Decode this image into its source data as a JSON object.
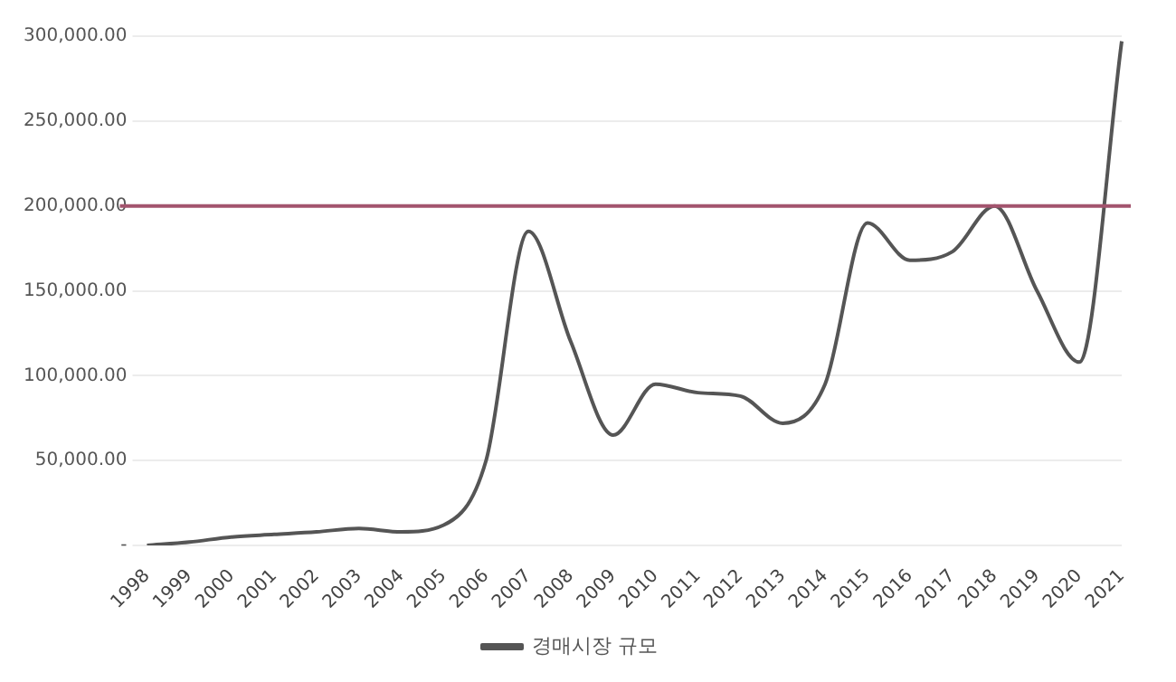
{
  "chart_data": {
    "type": "line",
    "categories": [
      "1998",
      "1999",
      "2000",
      "2001",
      "2002",
      "2003",
      "2004",
      "2005",
      "2006",
      "2007",
      "2008",
      "2009",
      "2010",
      "2011",
      "2012",
      "2013",
      "2014",
      "2015",
      "2016",
      "2017",
      "2018",
      "2019",
      "2020",
      "2021"
    ],
    "series": [
      {
        "name": "경매시장 규모",
        "color": "#555555",
        "values": [
          0,
          2000,
          5000,
          6500,
          8000,
          10000,
          8000,
          12000,
          50000,
          185000,
          120000,
          65000,
          95000,
          90000,
          88000,
          72000,
          95000,
          190000,
          168000,
          173000,
          200000,
          150000,
          108000,
          297000
        ]
      }
    ],
    "ylim": [
      0,
      300000
    ],
    "yticks": [
      {
        "value": 0,
        "label": "-"
      },
      {
        "value": 50000,
        "label": "50,000.00"
      },
      {
        "value": 100000,
        "label": "100,000.00"
      },
      {
        "value": 150000,
        "label": "150,000.00"
      },
      {
        "value": 200000,
        "label": "200,000.00"
      },
      {
        "value": 250000,
        "label": "250,000.00"
      },
      {
        "value": 300000,
        "label": "300,000.00"
      }
    ],
    "ref_lines": [
      {
        "axis": "y",
        "value": 200000,
        "label": null,
        "color": "#a3546e"
      }
    ],
    "grid": "y",
    "legend": "bottom",
    "marker": "none",
    "line_style": "solid"
  }
}
